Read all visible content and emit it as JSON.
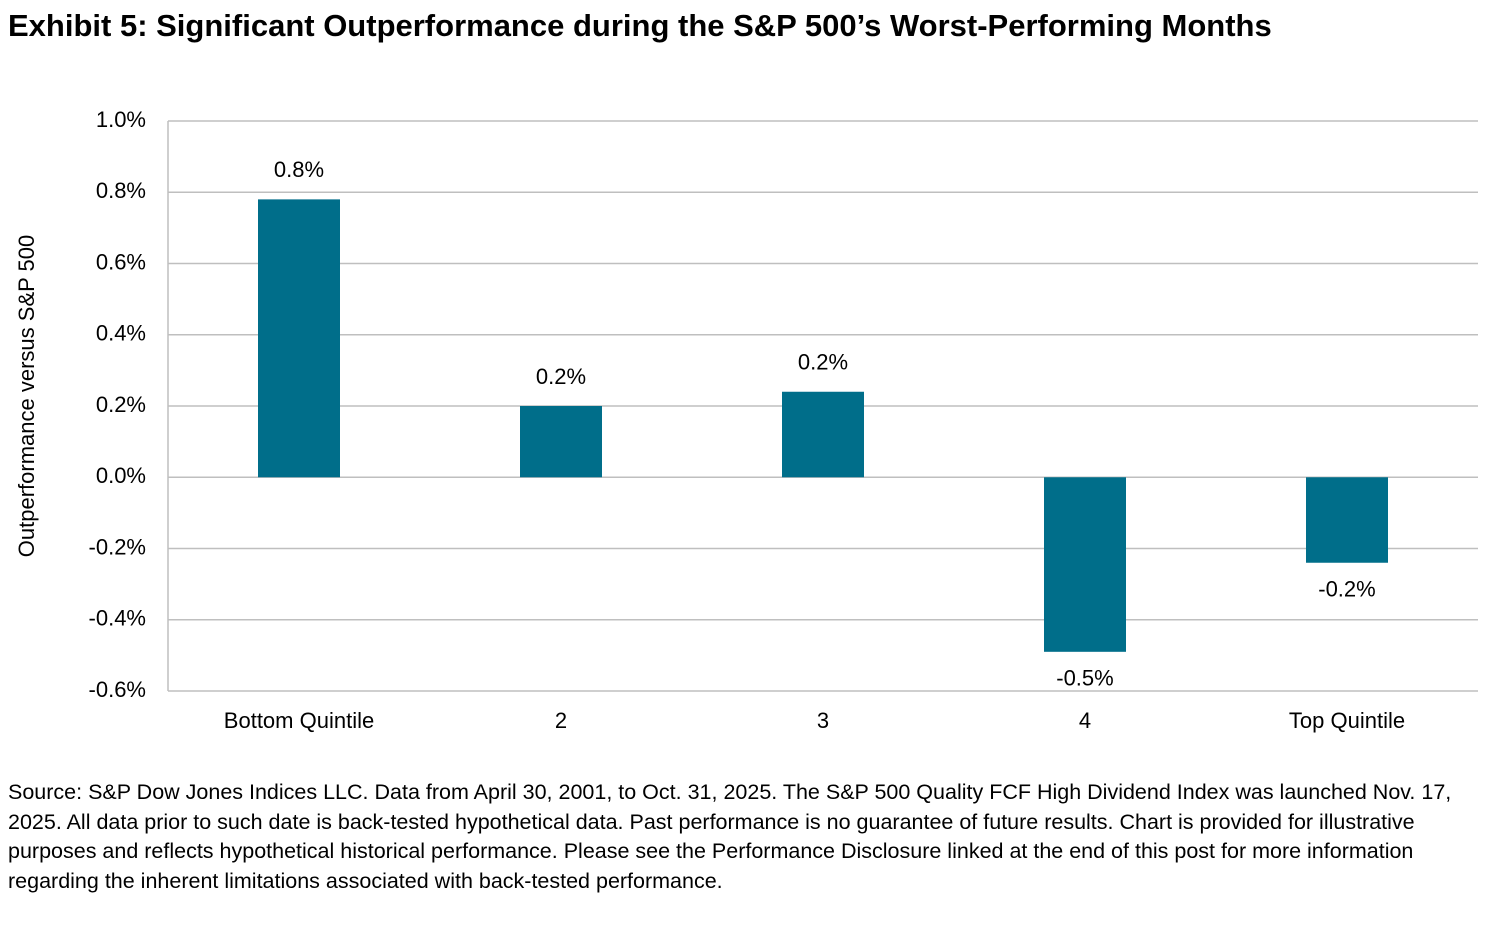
{
  "chart_data": {
    "type": "bar",
    "title": "Exhibit 5: Significant Outperformance during the S&P 500’s Worst-Performing Months",
    "y_label": "Outperformance versus S&P 500",
    "categories": [
      "Bottom Quintile",
      "2",
      "3",
      "4",
      "Top Quintile"
    ],
    "values": [
      0.78,
      0.2,
      0.24,
      -0.49,
      -0.24
    ],
    "value_labels": [
      "0.8%",
      "0.2%",
      "0.2%",
      "-0.5%",
      "-0.2%"
    ],
    "color": "#006e8a",
    "ylim": [
      -0.6,
      1.0
    ],
    "yticks": [
      {
        "value": -0.6,
        "label": "-0.6%"
      },
      {
        "value": -0.4,
        "label": "-0.4%"
      },
      {
        "value": -0.2,
        "label": "-0.2%"
      },
      {
        "value": 0.0,
        "label": "0.0%"
      },
      {
        "value": 0.2,
        "label": "0.2%"
      },
      {
        "value": 0.4,
        "label": "0.4%"
      },
      {
        "value": 0.6,
        "label": "0.6%"
      },
      {
        "value": 0.8,
        "label": "0.8%"
      },
      {
        "value": 1.0,
        "label": "1.0%"
      }
    ],
    "grid": true,
    "source": "Source: S&P Dow Jones Indices LLC. Data from April 30, 2001, to Oct. 31, 2025. The S&P 500 Quality FCF High Dividend Index was launched Nov. 17, 2025. All data prior to such date is back-tested hypothetical data. Past performance is no guarantee of future results. Chart is provided for illustrative purposes and reflects hypothetical historical performance. Please see the Performance Disclosure linked at the end of this post for more information regarding the inherent limitations associated with back-tested performance."
  }
}
